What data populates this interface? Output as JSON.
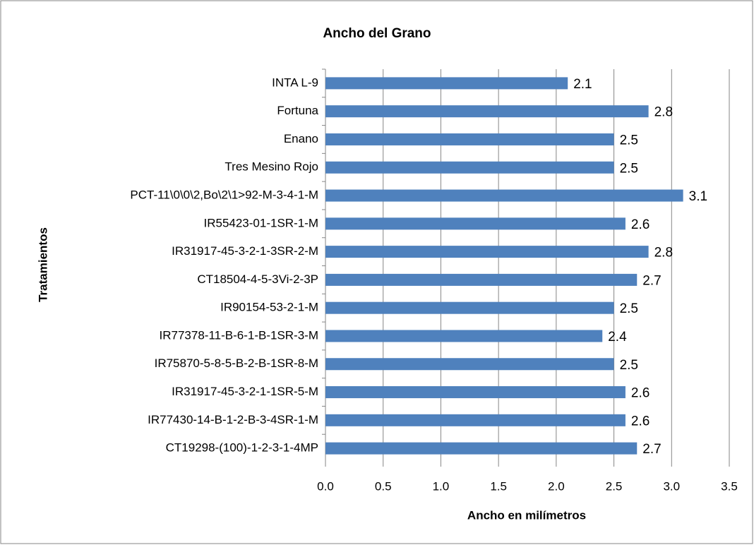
{
  "chart_data": {
    "type": "hbar",
    "title": "Ancho del Grano",
    "x_label": "Ancho en milímetros",
    "y_label": "Tratamientos",
    "categories": [
      "INTA L-9",
      "Fortuna",
      "Enano",
      "Tres Mesino Rojo",
      "PCT-11\\0\\0\\2,Bo\\2\\1>92-M-3-4-1-M",
      "IR55423-01-1SR-1-M",
      "IR31917-45-3-2-1-3SR-2-M",
      "CT18504-4-5-3Vi-2-3P",
      "IR90154-53-2-1-M",
      "IR77378-11-B-6-1-B-1SR-3-M",
      "IR75870-5-8-5-B-2-B-1SR-8-M",
      "IR31917-45-3-2-1-1SR-5-M",
      "IR77430-14-B-1-2-B-3-4SR-1-M",
      "CT19298-(100)-1-2-3-1-4MP"
    ],
    "values": [
      2.1,
      2.8,
      2.5,
      2.5,
      3.1,
      2.6,
      2.8,
      2.7,
      2.5,
      2.4,
      2.5,
      2.6,
      2.6,
      2.7
    ],
    "color": "#4f81bd",
    "xlim": [
      0,
      3.5
    ],
    "xticks": [
      {
        "value": 0,
        "label": "0.0"
      },
      0.5,
      {
        "value": 1,
        "label": "1.0"
      },
      1.5,
      {
        "value": 2,
        "label": "2.0"
      },
      2.5,
      {
        "value": 3,
        "label": "3.0"
      },
      3.5
    ],
    "grid": true
  }
}
